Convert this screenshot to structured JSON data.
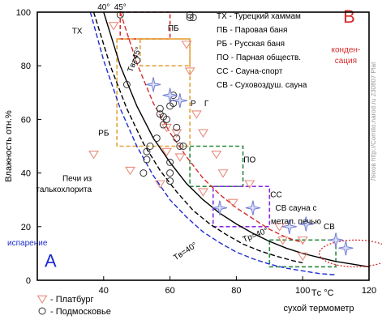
{
  "chart_data": {
    "type": "scatter",
    "xlabel": "сухой термометр",
    "ylabel": "Влажность отн.%",
    "x_unit_label": "Tс °C",
    "xlim": [
      20,
      120
    ],
    "ylim": [
      0,
      100
    ],
    "x_ticks": [
      40,
      60,
      80,
      100,
      120
    ],
    "y_ticks": [
      0,
      20,
      40,
      60,
      80,
      100
    ],
    "top_labels": [
      {
        "text": "40°",
        "x": 40
      },
      {
        "text": "45°",
        "x": 45
      }
    ],
    "colors": {
      "axis": "#000000",
      "red": "#d62b2b",
      "blue": "#1c2bd0",
      "black": "#000000",
      "salmon": "#e88d7d",
      "gray": "#555555",
      "orange": "#e5a23a",
      "pink": "#e33a5a",
      "green": "#2b8a3e",
      "purple": "#8a2be2",
      "star": "#6f7bd6",
      "watermark": "#999999"
    },
    "series": [
      {
        "name": "Платбург",
        "marker": "triangle",
        "color": "#e88d7d",
        "points": [
          [
            37,
            47
          ],
          [
            43,
            95
          ],
          [
            48,
            41
          ],
          [
            57,
            36
          ],
          [
            59,
            48
          ],
          [
            59,
            57
          ],
          [
            62,
            55
          ],
          [
            63,
            46
          ],
          [
            65,
            88
          ],
          [
            66,
            78
          ],
          [
            68,
            62
          ],
          [
            70,
            55
          ],
          [
            70,
            33
          ],
          [
            74,
            47
          ],
          [
            76,
            40
          ],
          [
            79,
            29
          ],
          [
            84,
            36
          ],
          [
            93,
            20
          ],
          [
            94,
            15
          ],
          [
            100,
            9
          ],
          [
            100,
            15
          ]
        ]
      },
      {
        "name": "Подмосковье",
        "marker": "circle",
        "color": "#555555",
        "points": [
          [
            45,
            99
          ],
          [
            47,
            73
          ],
          [
            50,
            82
          ],
          [
            52,
            40
          ],
          [
            53,
            45
          ],
          [
            53,
            48
          ],
          [
            54,
            50
          ],
          [
            56,
            53
          ],
          [
            57,
            64
          ],
          [
            57,
            62
          ],
          [
            58,
            58
          ],
          [
            58,
            61
          ],
          [
            59,
            60
          ],
          [
            60,
            65
          ],
          [
            60,
            44
          ],
          [
            60,
            40
          ],
          [
            60,
            37
          ],
          [
            61,
            66
          ],
          [
            61,
            69
          ],
          [
            62,
            57
          ],
          [
            62,
            53
          ],
          [
            63,
            50
          ],
          [
            64,
            50
          ],
          [
            66,
            98
          ],
          [
            66,
            99
          ],
          [
            67,
            98
          ]
        ]
      },
      {
        "name": "",
        "marker": "star",
        "color": "#6f7bd6",
        "points": [
          [
            55,
            73
          ],
          [
            60,
            69
          ],
          [
            63,
            67
          ],
          [
            75,
            27
          ],
          [
            85,
            27
          ],
          [
            96,
            20
          ],
          [
            101,
            21
          ],
          [
            110,
            15
          ],
          [
            113,
            12
          ]
        ]
      }
    ],
    "curves": [
      {
        "name": "Tв=45°",
        "color": "#d62b2b",
        "dash": true,
        "points": [
          [
            45,
            100
          ],
          [
            50,
            81
          ],
          [
            55,
            66
          ],
          [
            60,
            55
          ],
          [
            65,
            46
          ],
          [
            70,
            38
          ],
          [
            75,
            32
          ],
          [
            80,
            27
          ],
          [
            85,
            23
          ],
          [
            90,
            19
          ],
          [
            95,
            16
          ],
          [
            100,
            14
          ]
        ]
      },
      {
        "name": "Tв=40°",
        "color": "#000000",
        "dash": false,
        "points": [
          [
            40,
            100
          ],
          [
            45,
            80
          ],
          [
            50,
            65
          ],
          [
            55,
            53
          ],
          [
            60,
            44
          ],
          [
            65,
            36
          ],
          [
            70,
            30
          ],
          [
            75,
            25
          ],
          [
            80,
            21
          ],
          [
            85,
            17.5
          ],
          [
            90,
            14.5
          ],
          [
            95,
            12
          ],
          [
            100,
            10
          ],
          [
            105,
            8.5
          ],
          [
            110,
            7
          ],
          [
            115,
            6
          ],
          [
            120,
            5
          ]
        ]
      },
      {
        "name": "",
        "color": "#000000",
        "dash": true,
        "points": [
          [
            37,
            100
          ],
          [
            42,
            80
          ],
          [
            47,
            64
          ],
          [
            52,
            51
          ],
          [
            57,
            41
          ],
          [
            62,
            33
          ],
          [
            67,
            26
          ],
          [
            72,
            21
          ],
          [
            77,
            17
          ],
          [
            82,
            13.5
          ],
          [
            87,
            11
          ],
          [
            92,
            9
          ],
          [
            97,
            7.3
          ],
          [
            100,
            6.5
          ]
        ]
      },
      {
        "name": "",
        "color": "#1c2bd0",
        "dash": true,
        "points": [
          [
            36,
            100
          ],
          [
            40,
            82
          ],
          [
            45,
            64
          ],
          [
            50,
            50
          ],
          [
            55,
            39
          ],
          [
            60,
            30
          ],
          [
            65,
            23.5
          ],
          [
            70,
            18
          ],
          [
            75,
            14
          ],
          [
            80,
            10.5
          ],
          [
            85,
            8
          ],
          [
            90,
            6
          ],
          [
            95,
            4.5
          ],
          [
            100,
            3.5
          ],
          [
            105,
            2.5
          ],
          [
            110,
            2
          ]
        ]
      }
    ],
    "zones": [
      {
        "code": "ТХ",
        "name": "Турецкий хаммам",
        "color": "#d62b2b",
        "x": [
          45,
          60
        ],
        "y": [
          90,
          100
        ]
      },
      {
        "code": "ПБ",
        "name": "Паровая баня",
        "color": "#e5a23a",
        "x": [
          51,
          66
        ],
        "y": [
          80,
          90
        ]
      },
      {
        "code": "РБ",
        "name": "Русская баня",
        "color": "#e5a23a",
        "x": [
          44,
          66
        ],
        "y": [
          50,
          90
        ]
      },
      {
        "code": "ПО",
        "name": "Парная обществ.",
        "color": "#2b8a3e",
        "x": [
          66,
          82
        ],
        "y": [
          35,
          50
        ]
      },
      {
        "code": "СС",
        "name": "Сауна-спорт",
        "color": "#8a2be2",
        "x": [
          73,
          90
        ],
        "y": [
          20,
          35
        ]
      },
      {
        "code": "СВ",
        "name": "Суховоздуш. сауна",
        "color": "#2b8a3e",
        "x": [
          90,
          110
        ],
        "y": [
          5,
          15
        ]
      }
    ],
    "zone_labels": [
      {
        "text": "ТХ",
        "x": 32,
        "y": 92
      },
      {
        "text": "ПБ",
        "x": 61,
        "y": 93
      },
      {
        "text": "РБ",
        "x": 40,
        "y": 54
      },
      {
        "text": "Р",
        "x": 67,
        "y": 65
      },
      {
        "text": "Г",
        "x": 71,
        "y": 65
      },
      {
        "text": "ПО",
        "x": 84,
        "y": 44
      },
      {
        "text": "СС",
        "x": 92,
        "y": 31
      },
      {
        "text": "СВ",
        "x": 108,
        "y": 19
      }
    ],
    "legend_codes": [
      {
        "code": "ТХ",
        "name": "Турецкий хаммам"
      },
      {
        "code": "ПБ",
        "name": "Паровая баня"
      },
      {
        "code": "РБ",
        "name": "Русская баня"
      },
      {
        "code": "ПО",
        "name": "Парная обществ."
      },
      {
        "code": "СС",
        "name": "Сауна-спорт"
      },
      {
        "code": "СВ",
        "name": "Суховоздуш. сауна"
      }
    ],
    "legend_series": [
      {
        "marker": "triangle",
        "text": "- Платбург"
      },
      {
        "marker": "circle",
        "text": "- Подмосковье"
      }
    ],
    "annotations": [
      {
        "text": "B",
        "x": 114,
        "y": 96,
        "color": "#d62b2b",
        "size": "big"
      },
      {
        "text": "конден-",
        "x": 113,
        "y": 85,
        "color": "#d62b2b"
      },
      {
        "text": "сация",
        "x": 113,
        "y": 81,
        "color": "#d62b2b"
      },
      {
        "text": "A",
        "x": 24,
        "y": 5,
        "color": "#1c2bd0",
        "size": "big"
      },
      {
        "text": "испарение",
        "x": 17,
        "y": 13,
        "color": "#1c2bd0"
      },
      {
        "text": "Печи из",
        "x": 32,
        "y": 37,
        "color": "#000000"
      },
      {
        "text": "талькохлорита",
        "x": 28,
        "y": 33,
        "color": "#000000"
      },
      {
        "text": "СВ сауна с",
        "x": 98,
        "y": 26,
        "color": "#000000"
      },
      {
        "text": "метал. печью",
        "x": 98,
        "y": 21,
        "color": "#000000"
      }
    ],
    "curve_labels": [
      {
        "text": "Tв=45°",
        "x": 50,
        "y": 82,
        "angle": -70,
        "color": "#000000"
      },
      {
        "text": "Tр=40°",
        "x": 86,
        "y": 16,
        "angle": -22,
        "color": "#000000"
      },
      {
        "text": "Tв=40°",
        "x": 65,
        "y": 10,
        "angle": -33,
        "color": "#000000"
      }
    ],
    "watermark": "Ляхов http://Cornilo.narod.ru 230807 Plat",
    "condensation_ellipse": {
      "cx": 116,
      "cy": 10,
      "rx": 11,
      "ry": 5
    }
  }
}
